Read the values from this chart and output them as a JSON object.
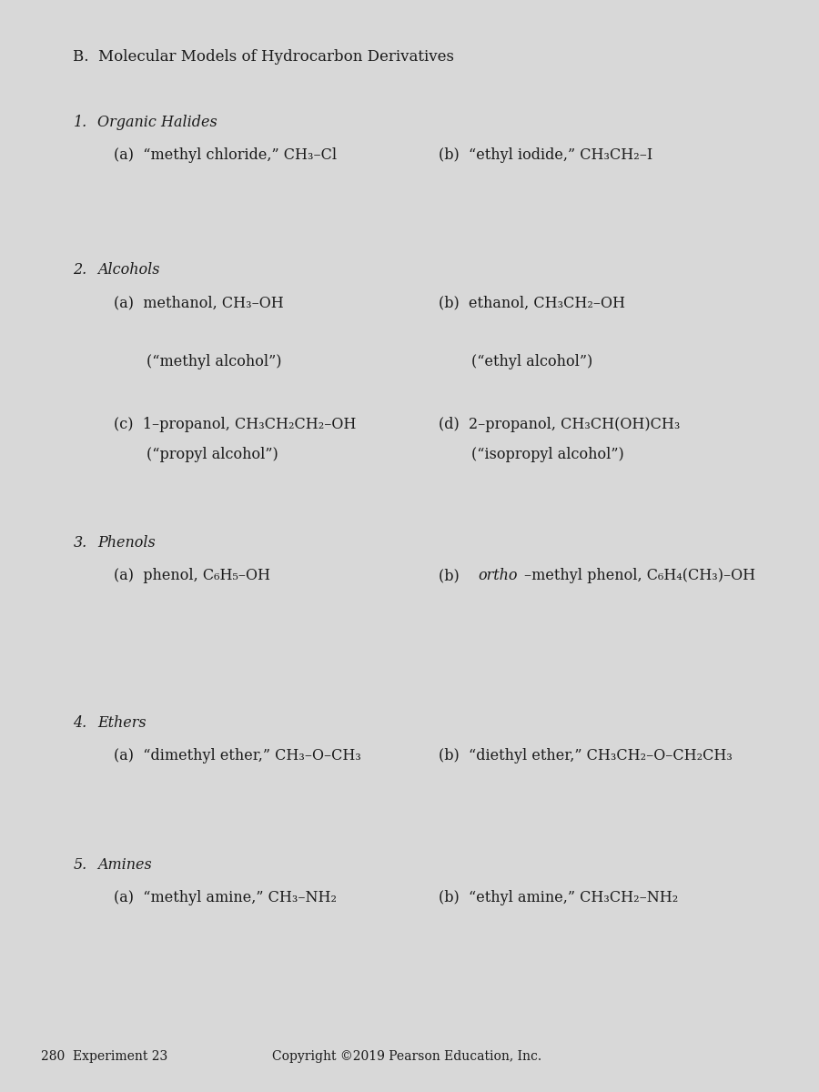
{
  "title": "B.  Molecular Models of Hydrocarbon Derivatives",
  "background_color": "#d8d8d8",
  "page_background": "#c8c8c8",
  "text_color": "#1a1a1a",
  "sections": [
    {
      "number": "1.",
      "heading": "Organic Halides",
      "heading_italic": true,
      "items": [
        {
          "label": "(a)",
          "text": "“methyl chloride,” CH₃–Cl",
          "col": 0
        },
        {
          "label": "(b)",
          "text": "“ethyl iodide,” CH₃CH₂–I",
          "col": 1
        }
      ]
    },
    {
      "number": "2.",
      "heading": "Alcohols",
      "heading_italic": true,
      "items": [
        {
          "label": "(a)",
          "text": "methanol, CH₃–OH",
          "subtext": "(“methyl alcohol”)",
          "col": 0
        },
        {
          "label": "(b)",
          "text": "ethanol, CH₃CH₂–OH",
          "subtext": "(“ethyl alcohol”)",
          "col": 1
        },
        {
          "label": "(c)",
          "text": "1–propanol, CH₃CH₂CH₂–OH",
          "subtext": "(“propyl alcohol”)",
          "col": 0
        },
        {
          "label": "(d)",
          "text": "2–propanol, CH₃CH(OH)CH₃",
          "subtext": "(“isopropyl alcohol”)",
          "col": 1
        }
      ]
    },
    {
      "number": "3.",
      "heading": "Phenols",
      "heading_italic": true,
      "items": [
        {
          "label": "(a)",
          "text": "phenol, C₆H₅–OH",
          "col": 0
        },
        {
          "label": "(b)",
          "text": "ortho–methyl phenol, C₆H₄(CH₃)–OH",
          "italic_prefix": "ortho",
          "col": 1
        }
      ]
    },
    {
      "number": "4.",
      "heading": "Ethers",
      "heading_italic": true,
      "items": [
        {
          "label": "(a)",
          "text": "“dimethyl ether,” CH₃–O–CH₃",
          "col": 0
        },
        {
          "label": "(b)",
          "text": "“diethyl ether,” CH₃CH₂–O–CH₂CH₃",
          "col": 1
        }
      ]
    },
    {
      "number": "5.",
      "heading": "Amines",
      "heading_italic": true,
      "items": [
        {
          "label": "(a)",
          "text": "“methyl amine,” CH₃–NH₂",
          "col": 0
        },
        {
          "label": "(b)",
          "text": "“ethyl amine,” CH₃CH₂–NH₂",
          "col": 1
        }
      ]
    }
  ],
  "footer_left": "280  Experiment 23",
  "footer_center": "Copyright ©2019 Pearson Education, Inc."
}
